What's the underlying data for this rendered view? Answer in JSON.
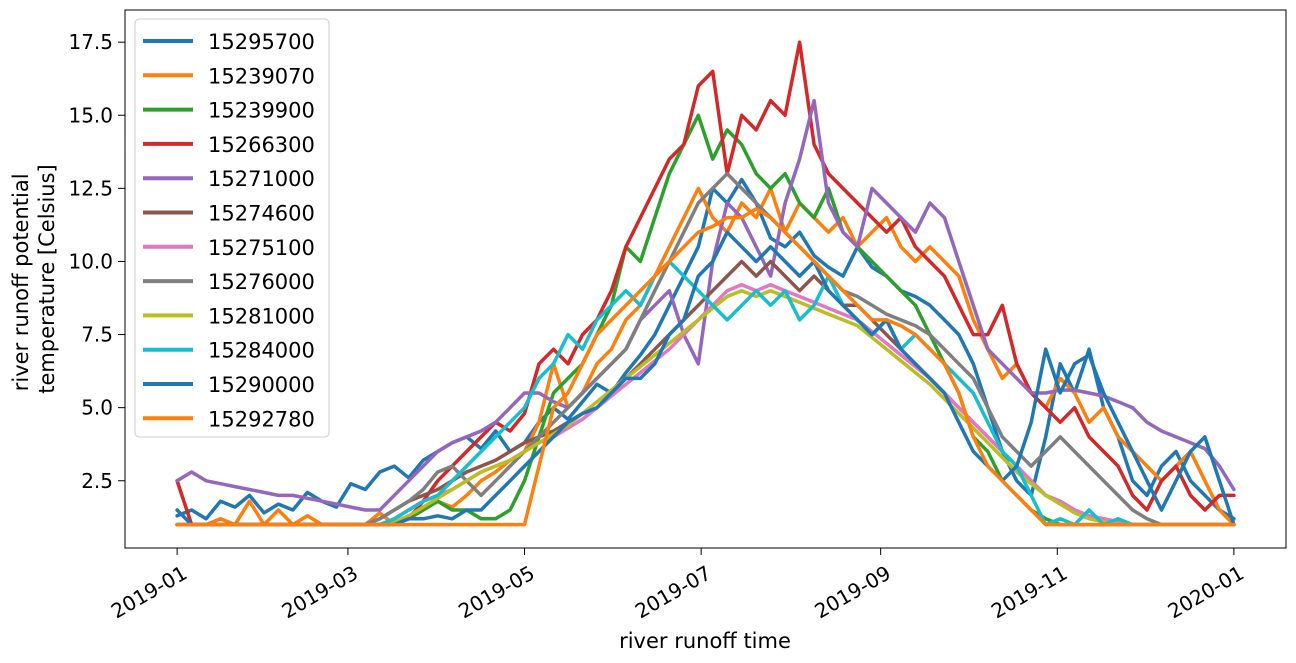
{
  "chart_data": {
    "type": "line",
    "title": "",
    "xlabel": "river runoff time",
    "ylabel_lines": [
      "river runoff potential",
      "temperature [Celsius]"
    ],
    "x_ticks": [
      "2019-01",
      "2019-03",
      "2019-05",
      "2019-07",
      "2019-09",
      "2019-11",
      "2020-01"
    ],
    "x_tick_days": [
      0,
      59,
      120,
      181,
      243,
      304,
      365
    ],
    "y_ticks": [
      "2.5",
      "5.0",
      "7.5",
      "10.0",
      "12.5",
      "15.0",
      "17.5"
    ],
    "y_tick_values": [
      2.5,
      5.0,
      7.5,
      10.0,
      12.5,
      15.0,
      17.5
    ],
    "xlim_days": [
      -18,
      383
    ],
    "ylim": [
      0.2,
      18.6
    ],
    "x_step_days": 5,
    "legend_position": "upper left",
    "series": [
      {
        "name": "15295700",
        "color": "#1f77b4",
        "values": [
          1.3,
          1.5,
          1.2,
          1.8,
          1.6,
          2.0,
          1.4,
          1.7,
          1.5,
          2.1,
          1.8,
          1.6,
          2.4,
          2.2,
          2.8,
          3.0,
          2.6,
          3.2,
          3.5,
          3.8,
          4.0,
          3.6,
          4.2,
          3.5,
          3.8,
          4.5,
          5.0,
          4.6,
          5.2,
          5.8,
          5.5,
          6.2,
          6.8,
          7.5,
          8.5,
          9.5,
          10.5,
          12.5,
          12.0,
          12.8,
          12.0,
          10.8,
          10.5,
          11.0,
          10.2,
          9.8,
          9.5,
          10.5,
          9.8,
          9.5,
          9.0,
          8.8,
          8.5,
          8.0,
          7.5,
          6.5,
          5.0,
          3.5,
          2.5,
          2.0,
          4.0,
          6.5,
          5.5,
          7.0,
          5.0,
          4.0,
          2.5,
          2.0,
          3.0,
          3.5,
          2.5,
          2.0,
          1.5,
          1.2
        ]
      },
      {
        "name": "15239070",
        "color": "#ff7f0e",
        "values": [
          1.0,
          1.0,
          1.0,
          1.2,
          1.0,
          1.8,
          1.0,
          1.5,
          1.0,
          1.3,
          1.0,
          1.0,
          1.0,
          1.0,
          1.4,
          1.0,
          1.2,
          1.5,
          1.8,
          1.6,
          2.0,
          2.5,
          2.8,
          3.2,
          3.5,
          4.5,
          6.5,
          5.0,
          5.5,
          6.5,
          7.0,
          8.0,
          8.5,
          9.5,
          10.5,
          11.5,
          12.5,
          11.5,
          11.0,
          12.0,
          11.5,
          12.5,
          11.0,
          12.0,
          11.5,
          11.0,
          11.5,
          10.5,
          11.0,
          11.5,
          10.5,
          10.0,
          10.5,
          10.0,
          9.5,
          8.0,
          7.0,
          6.0,
          6.5,
          5.5,
          5.0,
          6.0,
          5.5,
          4.5,
          5.0,
          4.0,
          3.5,
          3.0,
          2.5,
          3.0,
          3.5,
          2.5,
          1.5,
          1.0
        ]
      },
      {
        "name": "15239900",
        "color": "#2ca02c",
        "values": [
          1.0,
          1.0,
          1.0,
          1.0,
          1.0,
          1.0,
          1.0,
          1.0,
          1.0,
          1.0,
          1.0,
          1.0,
          1.0,
          1.0,
          1.0,
          1.0,
          1.2,
          1.5,
          1.8,
          1.5,
          1.5,
          1.2,
          1.2,
          1.5,
          2.5,
          4.0,
          5.5,
          6.0,
          6.5,
          7.5,
          8.5,
          10.5,
          10.0,
          11.5,
          13.0,
          14.0,
          15.0,
          13.5,
          14.5,
          14.0,
          13.0,
          12.5,
          13.0,
          12.0,
          11.5,
          12.5,
          11.0,
          10.5,
          10.0,
          9.5,
          9.0,
          8.5,
          7.5,
          6.5,
          5.5,
          4.0,
          3.5,
          2.5,
          2.0,
          1.5,
          1.2,
          1.0,
          1.0,
          1.0,
          1.0,
          1.0,
          1.0,
          1.0,
          1.0,
          1.0,
          1.0,
          1.0,
          1.0,
          1.0
        ]
      },
      {
        "name": "15266300",
        "color": "#d62728",
        "values": [
          2.5,
          1.0,
          1.0,
          1.0,
          1.0,
          1.0,
          1.0,
          1.0,
          1.0,
          1.0,
          1.0,
          1.0,
          1.0,
          1.0,
          1.0,
          1.0,
          1.2,
          1.8,
          2.5,
          3.0,
          3.5,
          4.0,
          4.5,
          4.2,
          4.8,
          6.5,
          7.0,
          6.5,
          7.5,
          8.0,
          9.0,
          10.5,
          11.5,
          12.5,
          13.5,
          14.0,
          16.0,
          16.5,
          13.0,
          15.0,
          14.5,
          15.5,
          15.0,
          17.5,
          14.0,
          13.0,
          12.5,
          12.0,
          11.5,
          11.0,
          11.5,
          10.5,
          10.0,
          9.5,
          8.5,
          7.5,
          7.5,
          8.5,
          6.5,
          5.5,
          5.0,
          4.5,
          5.0,
          4.0,
          3.5,
          3.0,
          2.0,
          1.5,
          2.5,
          3.0,
          2.0,
          1.5,
          2.0,
          2.0
        ]
      },
      {
        "name": "15271000",
        "color": "#9467bd",
        "values": [
          2.5,
          2.8,
          2.5,
          2.4,
          2.3,
          2.2,
          2.1,
          2.0,
          2.0,
          1.9,
          1.8,
          1.7,
          1.6,
          1.5,
          1.5,
          2.0,
          2.5,
          3.0,
          3.5,
          3.8,
          4.0,
          4.2,
          4.5,
          5.0,
          5.5,
          5.5,
          5.2,
          5.0,
          5.5,
          6.0,
          6.5,
          7.0,
          8.0,
          8.5,
          9.0,
          7.5,
          6.5,
          10.0,
          12.0,
          11.5,
          10.5,
          9.5,
          12.0,
          13.5,
          15.5,
          12.0,
          11.0,
          10.5,
          12.5,
          12.0,
          11.5,
          11.0,
          12.0,
          11.5,
          10.0,
          8.5,
          7.0,
          6.5,
          6.0,
          5.5,
          5.5,
          5.6,
          5.6,
          5.5,
          5.4,
          5.2,
          5.0,
          4.5,
          4.2,
          4.0,
          3.8,
          3.6,
          3.0,
          2.2
        ]
      },
      {
        "name": "15274600",
        "color": "#8c564b",
        "values": [
          1.0,
          1.0,
          1.0,
          1.0,
          1.0,
          1.0,
          1.0,
          1.0,
          1.0,
          1.0,
          1.0,
          1.0,
          1.0,
          1.0,
          1.2,
          1.5,
          1.8,
          2.0,
          2.2,
          2.5,
          2.8,
          3.0,
          3.2,
          3.5,
          3.8,
          4.0,
          4.2,
          4.5,
          4.8,
          5.0,
          5.5,
          6.0,
          6.5,
          7.0,
          7.5,
          8.0,
          8.5,
          9.0,
          9.5,
          10.0,
          9.5,
          10.0,
          9.5,
          9.0,
          9.5,
          9.0,
          8.5,
          8.5,
          8.0,
          7.5,
          7.0,
          6.5,
          6.0,
          5.5,
          5.0,
          4.5,
          4.0,
          3.5,
          3.0,
          2.5,
          2.0,
          1.8,
          1.5,
          1.3,
          1.2,
          1.1,
          1.0,
          1.0,
          1.0,
          1.0,
          1.0,
          1.0,
          1.0,
          1.0
        ]
      },
      {
        "name": "15275100",
        "color": "#e377c2",
        "values": [
          1.0,
          1.0,
          1.0,
          1.0,
          1.0,
          1.0,
          1.0,
          1.0,
          1.0,
          1.0,
          1.0,
          1.0,
          1.0,
          1.0,
          1.0,
          1.2,
          1.5,
          1.8,
          2.0,
          2.2,
          2.5,
          2.8,
          3.0,
          3.2,
          3.5,
          3.8,
          4.0,
          4.3,
          4.6,
          5.0,
          5.4,
          5.8,
          6.2,
          6.6,
          7.0,
          7.5,
          8.0,
          8.5,
          9.0,
          9.2,
          9.0,
          9.2,
          9.0,
          8.8,
          8.6,
          8.4,
          8.2,
          8.0,
          7.6,
          7.2,
          6.8,
          6.4,
          6.0,
          5.5,
          5.0,
          4.5,
          4.0,
          3.5,
          3.0,
          2.5,
          2.0,
          1.8,
          1.5,
          1.3,
          1.2,
          1.1,
          1.0,
          1.0,
          1.0,
          1.0,
          1.0,
          1.0,
          1.0,
          1.0
        ]
      },
      {
        "name": "15276000",
        "color": "#7f7f7f",
        "values": [
          1.0,
          1.0,
          1.0,
          1.0,
          1.0,
          1.0,
          1.0,
          1.0,
          1.0,
          1.0,
          1.0,
          1.0,
          1.0,
          1.0,
          1.2,
          1.5,
          1.8,
          2.2,
          2.8,
          3.0,
          2.5,
          2.0,
          2.5,
          3.0,
          3.5,
          4.0,
          4.5,
          5.0,
          5.5,
          6.0,
          6.5,
          7.0,
          8.0,
          9.0,
          10.0,
          11.0,
          12.0,
          12.5,
          13.0,
          12.5,
          12.0,
          11.5,
          11.0,
          10.5,
          10.0,
          9.5,
          9.0,
          8.8,
          8.5,
          8.2,
          8.0,
          7.8,
          7.5,
          7.0,
          6.5,
          6.0,
          5.0,
          4.0,
          3.5,
          3.0,
          3.5,
          4.0,
          3.5,
          3.0,
          2.5,
          2.0,
          1.5,
          1.2,
          1.0,
          1.0,
          1.0,
          1.0,
          1.0,
          1.0
        ]
      },
      {
        "name": "15281000",
        "color": "#bcbd22",
        "values": [
          1.0,
          1.0,
          1.0,
          1.0,
          1.0,
          1.0,
          1.0,
          1.0,
          1.0,
          1.0,
          1.0,
          1.0,
          1.0,
          1.0,
          1.0,
          1.1,
          1.3,
          1.6,
          1.9,
          2.2,
          2.5,
          2.8,
          3.0,
          3.2,
          3.5,
          3.8,
          4.1,
          4.4,
          4.8,
          5.2,
          5.6,
          6.0,
          6.4,
          6.8,
          7.2,
          7.6,
          8.0,
          8.4,
          8.8,
          9.0,
          8.8,
          9.0,
          8.8,
          8.6,
          8.4,
          8.2,
          8.0,
          7.8,
          7.4,
          7.0,
          6.6,
          6.2,
          5.8,
          5.3,
          4.8,
          4.3,
          3.8,
          3.3,
          2.8,
          2.4,
          2.0,
          1.7,
          1.4,
          1.2,
          1.1,
          1.0,
          1.0,
          1.0,
          1.0,
          1.0,
          1.0,
          1.0,
          1.0,
          1.0
        ]
      },
      {
        "name": "15284000",
        "color": "#17becf",
        "values": [
          1.0,
          1.0,
          1.0,
          1.0,
          1.0,
          1.0,
          1.0,
          1.0,
          1.0,
          1.0,
          1.0,
          1.0,
          1.0,
          1.0,
          1.0,
          1.2,
          1.5,
          1.8,
          2.0,
          2.5,
          3.0,
          3.5,
          4.0,
          4.5,
          5.0,
          6.0,
          6.5,
          7.5,
          7.0,
          8.0,
          8.5,
          9.0,
          8.5,
          9.5,
          10.0,
          9.5,
          9.0,
          8.5,
          8.0,
          8.5,
          9.0,
          8.5,
          9.0,
          8.0,
          8.5,
          9.5,
          8.5,
          8.0,
          7.5,
          8.0,
          7.0,
          7.5,
          7.0,
          6.5,
          6.0,
          5.5,
          4.5,
          3.5,
          3.0,
          2.0,
          1.0,
          1.2,
          1.0,
          1.5,
          1.0,
          1.2,
          1.0,
          1.0,
          1.0,
          1.0,
          1.0,
          1.0,
          1.0,
          1.0
        ]
      },
      {
        "name": "15290000",
        "color": "#1f77b4",
        "values": [
          1.5,
          1.0,
          1.0,
          1.0,
          1.0,
          1.0,
          1.0,
          1.0,
          1.0,
          1.0,
          1.0,
          1.0,
          1.0,
          1.0,
          1.0,
          1.0,
          1.2,
          1.2,
          1.3,
          1.2,
          1.5,
          1.5,
          2.0,
          2.5,
          3.0,
          3.5,
          4.0,
          4.5,
          4.8,
          5.0,
          5.5,
          6.0,
          6.0,
          6.5,
          7.5,
          8.0,
          9.5,
          10.0,
          11.0,
          10.5,
          10.0,
          10.5,
          10.0,
          9.5,
          10.0,
          9.0,
          8.5,
          8.0,
          7.5,
          8.0,
          7.0,
          6.5,
          6.0,
          5.5,
          4.5,
          3.5,
          3.0,
          2.5,
          3.0,
          4.5,
          7.0,
          5.5,
          6.5,
          6.8,
          5.5,
          4.5,
          3.5,
          2.5,
          1.5,
          2.5,
          3.5,
          4.0,
          2.5,
          1.0
        ]
      },
      {
        "name": "15292780",
        "color": "#ff7f0e",
        "values": [
          1.0,
          1.0,
          1.0,
          1.0,
          1.0,
          1.0,
          1.0,
          1.0,
          1.0,
          1.0,
          1.0,
          1.0,
          1.0,
          1.0,
          1.0,
          1.0,
          1.0,
          1.0,
          1.0,
          1.0,
          1.0,
          1.0,
          1.0,
          1.0,
          1.0,
          3.0,
          5.0,
          5.5,
          6.5,
          7.5,
          8.0,
          8.5,
          9.0,
          9.5,
          10.0,
          10.5,
          11.0,
          11.2,
          11.5,
          11.5,
          11.8,
          11.5,
          11.0,
          10.5,
          10.0,
          9.5,
          9.0,
          8.5,
          8.0,
          8.0,
          7.8,
          7.5,
          7.0,
          6.5,
          5.5,
          4.0,
          3.0,
          2.5,
          2.0,
          1.5,
          1.0,
          1.0,
          1.0,
          1.0,
          1.0,
          1.0,
          1.0,
          1.0,
          1.0,
          1.0,
          1.0,
          1.0,
          1.0,
          1.0
        ]
      }
    ]
  }
}
